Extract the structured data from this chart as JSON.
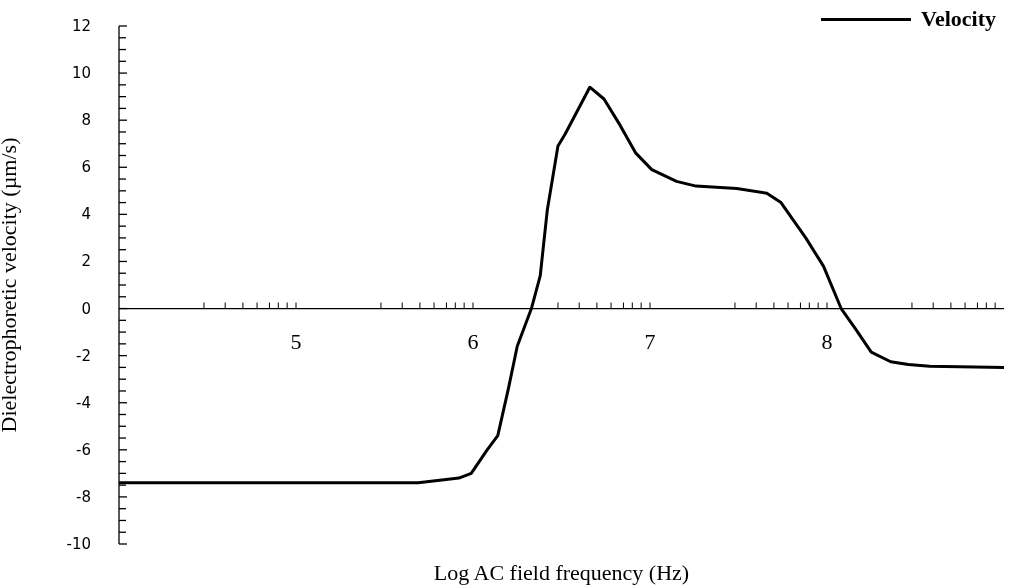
{
  "chart_data": {
    "type": "line",
    "xlabel": "Log AC field frequency (Hz)",
    "ylabel": "Dielectrophoretic velocity (µm/s)",
    "legend": "top right",
    "x": [
      4.0,
      5.69,
      5.8,
      5.92,
      5.99,
      6.08,
      6.14,
      6.2,
      6.25,
      6.33,
      6.38,
      6.42,
      6.48,
      6.52,
      6.66,
      6.74,
      6.83,
      6.92,
      7.01,
      7.15,
      7.26,
      7.49,
      7.66,
      7.74,
      7.88,
      7.98,
      8.08,
      8.16,
      8.25,
      8.36,
      8.46,
      8.58,
      9.0
    ],
    "series": [
      {
        "name": "Velocity",
        "color": "#000000",
        "values": [
          -7.4,
          -7.4,
          -7.3,
          -7.2,
          -7.0,
          -6.0,
          -5.4,
          -3.4,
          -1.6,
          0,
          1.4,
          4.2,
          6.9,
          7.4,
          9.4,
          8.9,
          7.8,
          6.6,
          5.9,
          5.4,
          5.2,
          5.1,
          4.9,
          4.5,
          3.0,
          1.8,
          0,
          -0.85,
          -1.85,
          -2.26,
          -2.38,
          -2.45,
          -2.5
        ]
      }
    ],
    "xlim": [
      4,
      9
    ],
    "xticks": [
      {
        "value": 4.48,
        "label": null
      },
      {
        "value": 4.6,
        "label": null
      },
      {
        "value": 4.7,
        "label": null
      },
      {
        "value": 4.78,
        "label": null
      },
      {
        "value": 4.85,
        "label": null
      },
      {
        "value": 4.9,
        "label": null
      },
      {
        "value": 4.95,
        "label": null
      },
      5,
      {
        "value": 5.48,
        "label": null
      },
      {
        "value": 5.6,
        "label": null
      },
      {
        "value": 5.7,
        "label": null
      },
      {
        "value": 5.78,
        "label": null
      },
      {
        "value": 5.85,
        "label": null
      },
      {
        "value": 5.9,
        "label": null
      },
      {
        "value": 5.95,
        "label": null
      },
      6,
      {
        "value": 6.48,
        "label": null
      },
      {
        "value": 6.6,
        "label": null
      },
      {
        "value": 6.7,
        "label": null
      },
      {
        "value": 6.78,
        "label": null
      },
      {
        "value": 6.85,
        "label": null
      },
      {
        "value": 6.9,
        "label": null
      },
      {
        "value": 6.95,
        "label": null
      },
      7,
      {
        "value": 7.48,
        "label": null
      },
      {
        "value": 7.6,
        "label": null
      },
      {
        "value": 7.7,
        "label": null
      },
      {
        "value": 7.78,
        "label": null
      },
      {
        "value": 7.85,
        "label": null
      },
      {
        "value": 7.9,
        "label": null
      },
      {
        "value": 7.95,
        "label": null
      },
      8,
      {
        "value": 8.48,
        "label": null
      },
      {
        "value": 8.6,
        "label": null
      },
      {
        "value": 8.7,
        "label": null
      },
      {
        "value": 8.78,
        "label": null
      },
      {
        "value": 8.85,
        "label": null
      },
      {
        "value": 8.9,
        "label": null
      },
      {
        "value": 8.95,
        "label": null
      }
    ],
    "ylim": [
      -10,
      12
    ],
    "yticks": [
      -10,
      {
        "value": -9.5,
        "label": null
      },
      {
        "value": -9,
        "label": null
      },
      {
        "value": -8.5,
        "label": null
      },
      -8,
      {
        "value": -7.5,
        "label": null
      },
      {
        "value": -7,
        "label": null
      },
      {
        "value": -6.5,
        "label": null
      },
      -6,
      {
        "value": -5.5,
        "label": null
      },
      {
        "value": -5,
        "label": null
      },
      {
        "value": -4.5,
        "label": null
      },
      -4,
      {
        "value": -3.5,
        "label": null
      },
      {
        "value": -3,
        "label": null
      },
      {
        "value": -2.5,
        "label": null
      },
      -2,
      {
        "value": -1.5,
        "label": null
      },
      {
        "value": -1,
        "label": null
      },
      {
        "value": -0.5,
        "label": null
      },
      0,
      {
        "value": 0.5,
        "label": null
      },
      {
        "value": 1,
        "label": null
      },
      {
        "value": 1.5,
        "label": null
      },
      2,
      {
        "value": 2.5,
        "label": null
      },
      {
        "value": 3,
        "label": null
      },
      {
        "value": 3.5,
        "label": null
      },
      4,
      {
        "value": 4.5,
        "label": null
      },
      {
        "value": 5,
        "label": null
      },
      {
        "value": 5.5,
        "label": null
      },
      6,
      {
        "value": 6.5,
        "label": null
      },
      {
        "value": 7,
        "label": null
      },
      {
        "value": 7.5,
        "label": null
      },
      8,
      {
        "value": 8.5,
        "label": null
      },
      {
        "value": 9,
        "label": null
      },
      {
        "value": 9.5,
        "label": null
      },
      10,
      {
        "value": 10.5,
        "label": null
      },
      {
        "value": 11,
        "label": null
      },
      {
        "value": 11.5,
        "label": null
      },
      12
    ]
  }
}
